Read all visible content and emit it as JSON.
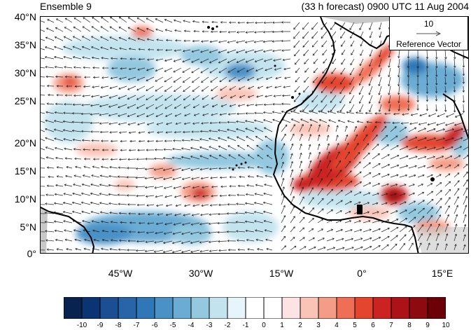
{
  "title_left": "Ensemble 9",
  "title_right": "(33 h forecast) 0900 UTC 11 Aug 2004",
  "reference_vector": {
    "magnitude": "10",
    "label": "Reference Vector"
  },
  "y_ticks": [
    "40°N",
    "35°N",
    "30°N",
    "25°N",
    "20°N",
    "15°N",
    "10°N",
    "5°N",
    "0°"
  ],
  "x_ticks": [
    "45°W",
    "30°W",
    "15°W",
    "0°",
    "15°E"
  ],
  "colorbar": {
    "labels": [
      "-10",
      "-9",
      "-8",
      "-7",
      "-6",
      "-5",
      "-4",
      "-3",
      "-2",
      "-1",
      "0",
      "1",
      "2",
      "3",
      "4",
      "5",
      "6",
      "7",
      "8",
      "9",
      "10"
    ],
    "colors": [
      "#08234f",
      "#0b3572",
      "#1a4f94",
      "#2764a8",
      "#2f77b7",
      "#4a91c6",
      "#6aacd3",
      "#93c8df",
      "#c3e4ef",
      "#e6f5fb",
      "#ffffff",
      "#ffffff",
      "#fde3e3",
      "#f9c3b6",
      "#f59c86",
      "#f06e55",
      "#e4452f",
      "#cb2321",
      "#ad1219",
      "#8d0a11",
      "#6b0007"
    ]
  },
  "map": {
    "lon_range": [
      -60,
      20
    ],
    "lat_range": [
      0,
      40
    ],
    "colors": {
      "coast": "#000000",
      "land_mask": "#c8c8c8",
      "arrow": "#222222"
    }
  }
}
